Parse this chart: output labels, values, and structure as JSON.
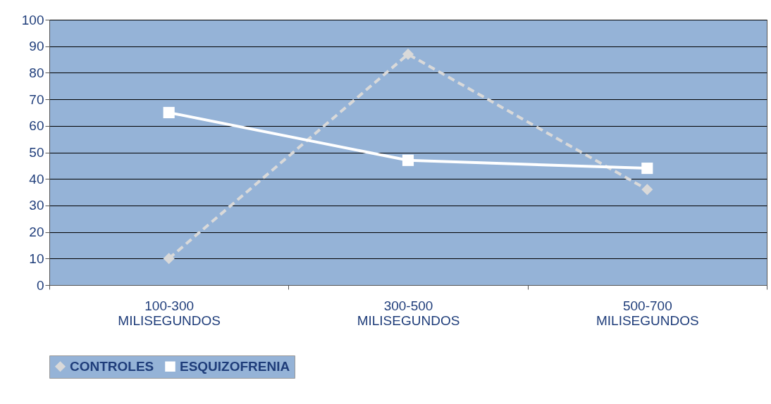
{
  "chart_data": {
    "type": "line",
    "categories": [
      "100-300 MILISEGUNDOS",
      "300-500 MILISEGUNDOS",
      "500-700 MILISEGUNDOS"
    ],
    "series": [
      {
        "name": "CONTROLES",
        "color": "#d9d9d9",
        "marker": "diamond",
        "line_style": "dashed",
        "values": [
          10,
          87,
          36
        ]
      },
      {
        "name": "ESQUIZOFRENIA",
        "color": "#ffffff",
        "marker": "square",
        "line_style": "solid",
        "values": [
          65,
          47,
          44
        ]
      }
    ],
    "ylim": [
      0,
      100
    ],
    "yticks": [
      0,
      10,
      20,
      30,
      40,
      50,
      60,
      70,
      80,
      90,
      100
    ],
    "grid": "y",
    "legend": "bottom"
  }
}
